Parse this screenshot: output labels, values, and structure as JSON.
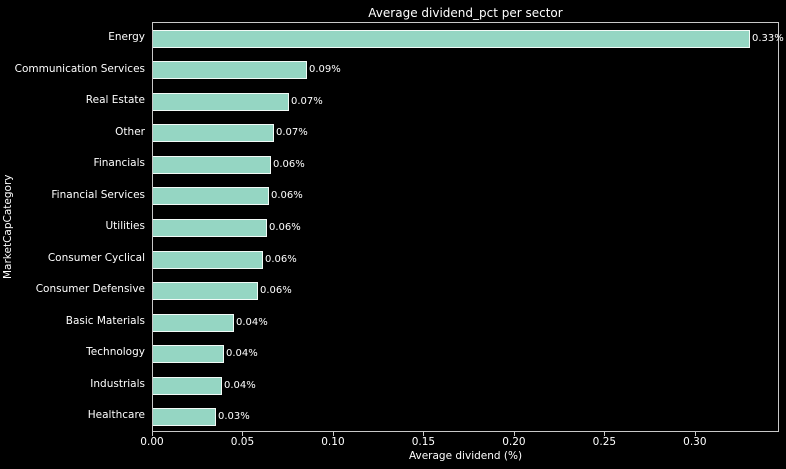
{
  "figure": {
    "background_color": "#000000",
    "text_color": "#ffffff",
    "axes_border_color": "#c8c8c8"
  },
  "chart_data": {
    "type": "bar",
    "orientation": "horizontal",
    "title": "Average dividend_pct per sector",
    "xlabel": "Average dividend (%)",
    "ylabel": "MarketCapCategory",
    "categories": [
      "Energy",
      "Communication Services",
      "Real Estate",
      "Other",
      "Financials",
      "Financial Services",
      "Utilities",
      "Consumer Cyclical",
      "Consumer Defensive",
      "Basic Materials",
      "Technology",
      "Industrials",
      "Healthcare"
    ],
    "values": [
      0.33,
      0.085,
      0.075,
      0.067,
      0.065,
      0.064,
      0.063,
      0.061,
      0.058,
      0.045,
      0.039,
      0.038,
      0.035
    ],
    "value_labels": [
      "0.33%",
      "0.09%",
      "0.07%",
      "0.07%",
      "0.06%",
      "0.06%",
      "0.06%",
      "0.06%",
      "0.06%",
      "0.04%",
      "0.04%",
      "0.04%",
      "0.03%"
    ],
    "xlim": [
      0,
      0.3465
    ],
    "xticks": [
      0.0,
      0.05,
      0.1,
      0.15,
      0.2,
      0.25,
      0.3
    ],
    "xtick_labels": [
      "0.00",
      "0.05",
      "0.10",
      "0.15",
      "0.20",
      "0.25",
      "0.30"
    ],
    "grid": false,
    "legend": "none",
    "bar_color": "#95d6c3",
    "bar_edge_color": "#f2faf7"
  }
}
